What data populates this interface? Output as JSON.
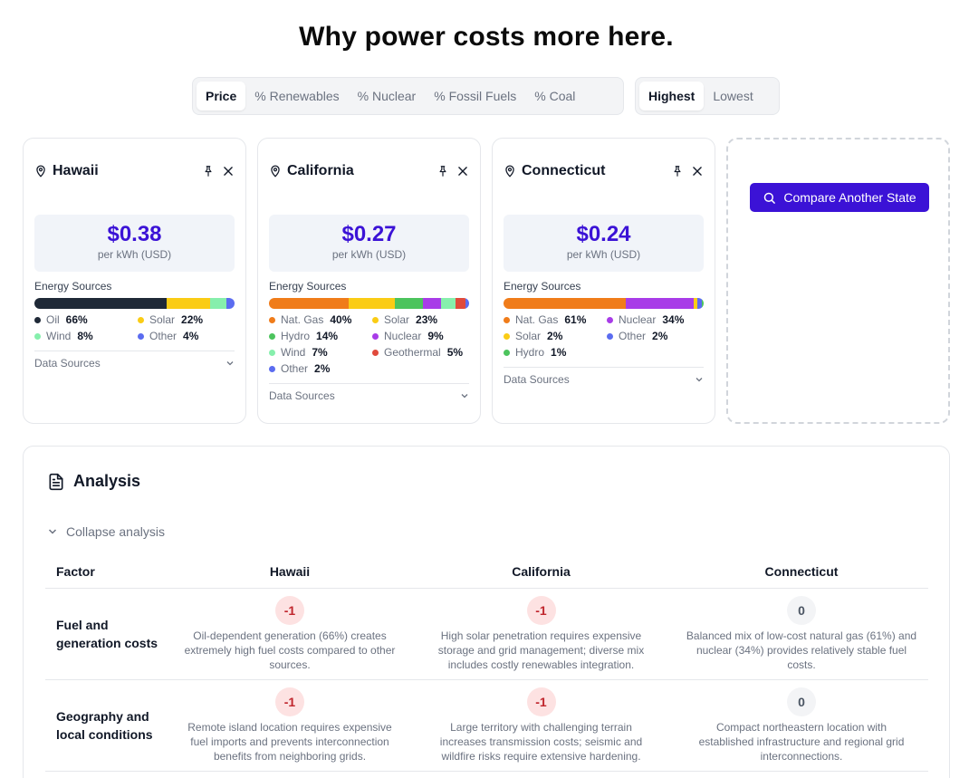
{
  "page": {
    "title": "Why power costs more here."
  },
  "metric_toggle": {
    "options": [
      "Price",
      "% Renewables",
      "% Nuclear",
      "% Fossil Fuels",
      "% Coal"
    ],
    "selected": "Price"
  },
  "order_toggle": {
    "options": [
      "Highest",
      "Lowest"
    ],
    "selected": "Highest"
  },
  "states": [
    {
      "name": "Hawaii",
      "price": "$0.38",
      "unit": "per kWh (USD)",
      "energy_label": "Energy Sources",
      "sources": [
        {
          "name": "Oil",
          "pct": "66%",
          "value": 66,
          "color": "#1f2937"
        },
        {
          "name": "Solar",
          "pct": "22%",
          "value": 22,
          "color": "#facc15"
        },
        {
          "name": "Wind",
          "pct": "8%",
          "value": 8,
          "color": "#86efac"
        },
        {
          "name": "Other",
          "pct": "4%",
          "value": 4,
          "color": "#5b6cf0"
        }
      ],
      "data_sources_label": "Data Sources"
    },
    {
      "name": "California",
      "price": "$0.27",
      "unit": "per kWh (USD)",
      "energy_label": "Energy Sources",
      "sources": [
        {
          "name": "Nat. Gas",
          "pct": "40%",
          "value": 40,
          "color": "#f07c1a"
        },
        {
          "name": "Solar",
          "pct": "23%",
          "value": 23,
          "color": "#facc15"
        },
        {
          "name": "Hydro",
          "pct": "14%",
          "value": 14,
          "color": "#4cc45d"
        },
        {
          "name": "Nuclear",
          "pct": "9%",
          "value": 9,
          "color": "#a83ce8"
        },
        {
          "name": "Wind",
          "pct": "7%",
          "value": 7,
          "color": "#86efac"
        },
        {
          "name": "Geothermal",
          "pct": "5%",
          "value": 5,
          "color": "#e04a3c"
        },
        {
          "name": "Other",
          "pct": "2%",
          "value": 2,
          "color": "#5b6cf0"
        }
      ],
      "data_sources_label": "Data Sources"
    },
    {
      "name": "Connecticut",
      "price": "$0.24",
      "unit": "per kWh (USD)",
      "energy_label": "Energy Sources",
      "sources": [
        {
          "name": "Nat. Gas",
          "pct": "61%",
          "value": 61,
          "color": "#f07c1a"
        },
        {
          "name": "Nuclear",
          "pct": "34%",
          "value": 34,
          "color": "#a83ce8"
        },
        {
          "name": "Solar",
          "pct": "2%",
          "value": 2,
          "color": "#facc15"
        },
        {
          "name": "Other",
          "pct": "2%",
          "value": 2,
          "color": "#5b6cf0"
        },
        {
          "name": "Hydro",
          "pct": "1%",
          "value": 1,
          "color": "#4cc45d"
        }
      ],
      "data_sources_label": "Data Sources"
    }
  ],
  "compare_button": {
    "label": "Compare Another State"
  },
  "analysis": {
    "title": "Analysis",
    "collapse_label": "Collapse analysis",
    "header": {
      "factor": "Factor",
      "states": [
        "Hawaii",
        "California",
        "Connecticut"
      ]
    },
    "rows": [
      {
        "factor": "Fuel and generation costs",
        "cells": [
          {
            "score": "-1",
            "text": "Oil-dependent generation (66%) creates extremely high fuel costs compared to other sources."
          },
          {
            "score": "-1",
            "text": "High solar penetration requires expensive storage and grid management; diverse mix includes costly renewables integration."
          },
          {
            "score": "0",
            "text": "Balanced mix of low-cost natural gas (61%) and nuclear (34%) provides relatively stable fuel costs."
          }
        ]
      },
      {
        "factor": "Geography and local conditions",
        "cells": [
          {
            "score": "-1",
            "text": "Remote island location requires expensive fuel imports and prevents interconnection benefits from neighboring grids."
          },
          {
            "score": "-1",
            "text": "Large territory with challenging terrain increases transmission costs; seismic and wildfire risks require extensive hardening."
          },
          {
            "score": "0",
            "text": "Compact northeastern location with established infrastructure and regional grid interconnections."
          }
        ]
      }
    ]
  }
}
